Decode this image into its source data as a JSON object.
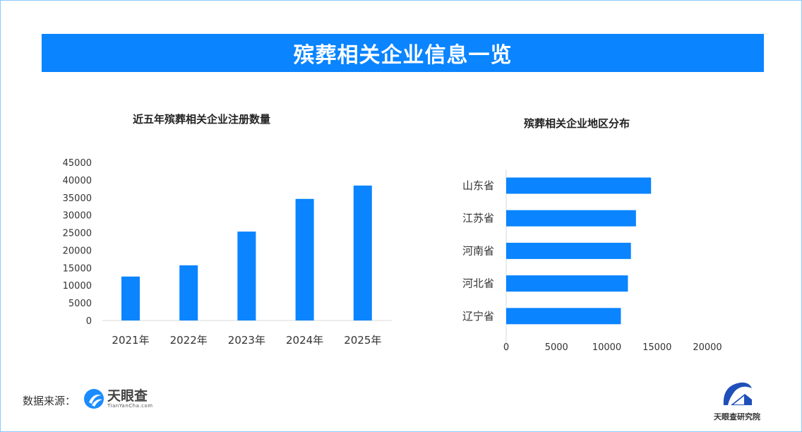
{
  "banner_title": "殡葬相关企业信息一览",
  "colors": {
    "accent": "#0a84ff",
    "bar": "#0a84ff"
  },
  "source_label": "数据来源：",
  "logos": {
    "tianyancha_cn": "天眼查",
    "tianyancha_en": "TianYanCha.com",
    "institute": "天眼查研究院"
  },
  "chart_data": [
    {
      "type": "bar",
      "title": "近五年殡葬相关企业注册数量",
      "categories": [
        "2021年",
        "2022年",
        "2023年",
        "2024年",
        "2025年"
      ],
      "values": [
        12500,
        15700,
        25300,
        34600,
        38400
      ],
      "ylim": [
        0,
        45000
      ],
      "yticks": [
        "0",
        "5000",
        "10000",
        "15000",
        "20000",
        "25000",
        "30000",
        "35000",
        "40000",
        "45000"
      ],
      "grid": false
    },
    {
      "type": "bar",
      "orientation": "horizontal",
      "title": "殡葬相关企业地区分布",
      "categories": [
        "山东省",
        "江苏省",
        "河南省",
        "河北省",
        "辽宁省"
      ],
      "values": [
        14400,
        12900,
        12400,
        12100,
        11400
      ],
      "xlim": [
        0,
        20000
      ],
      "xticks": [
        "0",
        "5000",
        "10000",
        "15000",
        "20000"
      ],
      "grid": false
    }
  ]
}
